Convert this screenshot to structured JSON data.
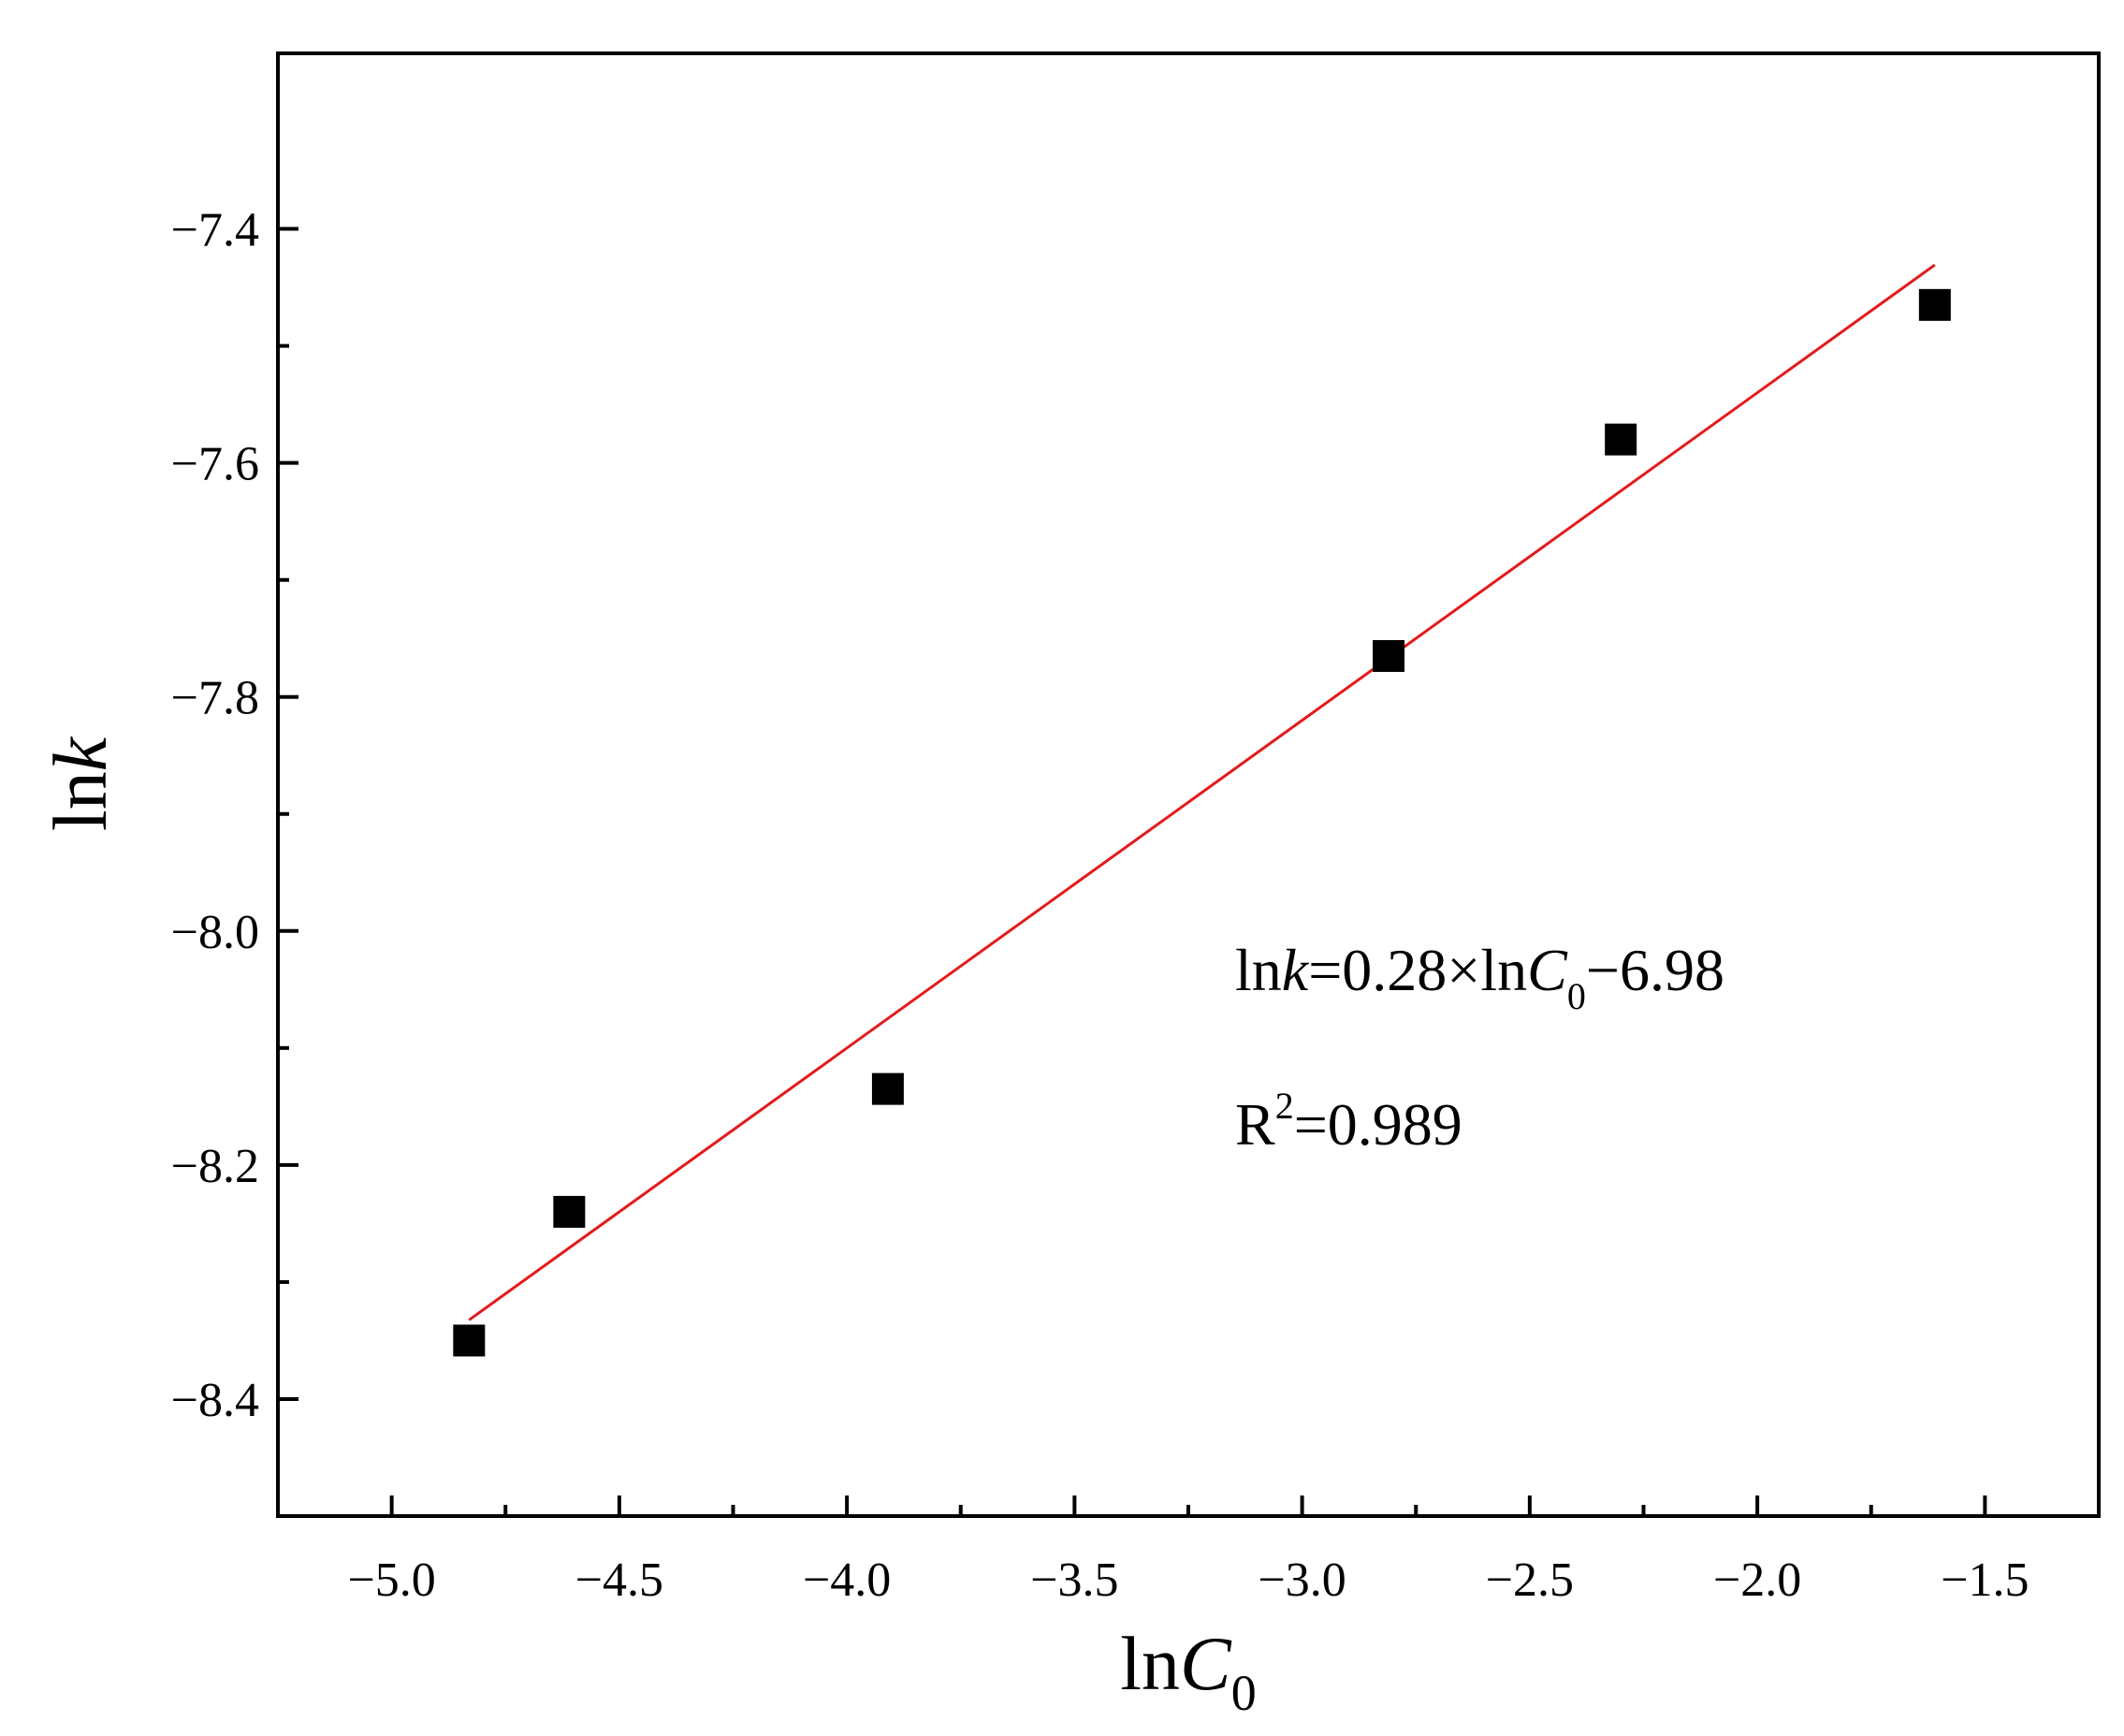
{
  "chart_data": {
    "type": "scatter",
    "title": "",
    "xlabel": {
      "base": "ln",
      "var": "C",
      "sub": "0"
    },
    "ylabel": {
      "base": "ln",
      "var": "k"
    },
    "xlim": [
      -5.25,
      -1.25
    ],
    "ylim": [
      -8.5,
      -7.25
    ],
    "xticks": [
      -5.0,
      -4.5,
      -4.0,
      -3.5,
      -3.0,
      -2.5,
      -2.0,
      -1.5
    ],
    "xtick_labels": [
      "−5.0",
      "−4.5",
      "−4.0",
      "−3.5",
      "−3.0",
      "−2.5",
      "−2.0",
      "−1.5"
    ],
    "xminor": [
      -4.75,
      -4.25,
      -3.75,
      -3.25,
      -2.75,
      -2.25,
      -1.75
    ],
    "yticks": [
      -8.4,
      -8.2,
      -8.0,
      -7.8,
      -7.6,
      -7.4
    ],
    "ytick_labels": [
      "−8.4",
      "−8.2",
      "−8.0",
      "−7.8",
      "−7.6",
      "−7.4"
    ],
    "yminor": [
      -8.3,
      -8.1,
      -7.9,
      -7.7,
      -7.5
    ],
    "grid": false,
    "points": {
      "x": [
        -4.83,
        -4.61,
        -3.91,
        -2.81,
        -2.3,
        -1.61
      ],
      "y": [
        -8.35,
        -8.24,
        -8.135,
        -7.765,
        -7.58,
        -7.465
      ],
      "color": "#000000",
      "marker": "square"
    },
    "fit": {
      "slope": 0.28,
      "intercept": -6.98,
      "x_range": [
        -4.83,
        -1.61
      ],
      "color": "#e31a1c"
    },
    "annotations": {
      "equation": {
        "p1": "ln",
        "p2": "k",
        "p3": "=0.28×ln",
        "p4": "C",
        "p5": "0",
        "p6": "−6.98"
      },
      "r2": {
        "p1": "R",
        "p2": "2",
        "p3": "=0.989"
      }
    }
  }
}
